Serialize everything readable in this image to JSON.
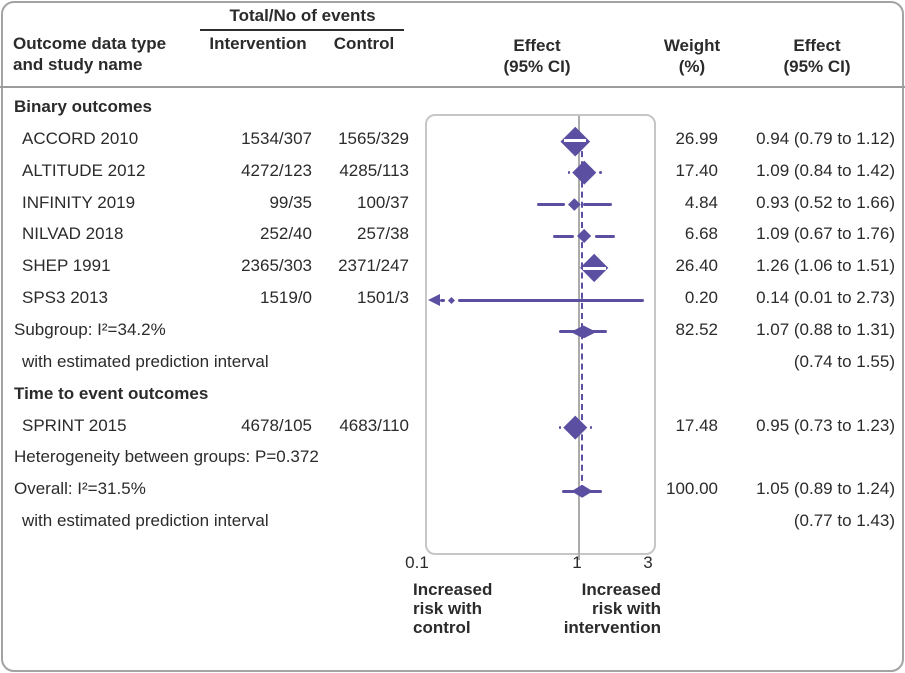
{
  "colors": {
    "accent": "#5b4fa1",
    "null_line": "#ababab",
    "text": "#2b2b2b"
  },
  "header": {
    "events_group": "Total/No of events",
    "outcome_l1": "Outcome data type",
    "outcome_l2": "and study name",
    "intervention": "Intervention",
    "control": "Control",
    "effect_plot_l1": "Effect",
    "effect_plot_l2": "(95% CI)",
    "weight_l1": "Weight",
    "weight_l2": "(%)",
    "effect_text_l1": "Effect",
    "effect_text_l2": "(95% CI)"
  },
  "chart_data": {
    "type": "forest",
    "x_scale": "log",
    "x_ticks": [
      "0.1",
      "1",
      "3"
    ],
    "x_range": [
      0.1,
      3
    ],
    "null_value": 1,
    "overall_estimate_line": 1.05,
    "direction_labels": {
      "left": [
        "Increased",
        "risk with",
        "control"
      ],
      "right": [
        "Increased",
        "risk with",
        "intervention"
      ]
    },
    "rows": [
      {
        "kind": "section",
        "label": "Binary outcomes"
      },
      {
        "kind": "study",
        "label": "ACCORD 2010",
        "intervention": "1534/307",
        "control": "1565/329",
        "weight": "26.99",
        "effect_text": "0.94 (0.79 to 1.12)",
        "est": 0.94,
        "ci_lo": 0.79,
        "ci_hi": 1.12
      },
      {
        "kind": "study",
        "label": "ALTITUDE 2012",
        "intervention": "4272/123",
        "control": "4285/113",
        "weight": "17.40",
        "effect_text": "1.09 (0.84 to 1.42)",
        "est": 1.09,
        "ci_lo": 0.84,
        "ci_hi": 1.42
      },
      {
        "kind": "study",
        "label": "INFINITY 2019",
        "intervention": "99/35",
        "control": "100/37",
        "weight": "4.84",
        "effect_text": "0.93 (0.52 to 1.66)",
        "est": 0.93,
        "ci_lo": 0.52,
        "ci_hi": 1.66
      },
      {
        "kind": "study",
        "label": "NILVAD 2018",
        "intervention": "252/40",
        "control": "257/38",
        "weight": "6.68",
        "effect_text": "1.09 (0.67 to 1.76)",
        "est": 1.09,
        "ci_lo": 0.67,
        "ci_hi": 1.76
      },
      {
        "kind": "study",
        "label": "SHEP 1991",
        "intervention": "2365/303",
        "control": "2371/247",
        "weight": "26.40",
        "effect_text": "1.26 (1.06 to 1.51)",
        "est": 1.26,
        "ci_lo": 1.06,
        "ci_hi": 1.51
      },
      {
        "kind": "study",
        "label": "SPS3 2013",
        "intervention": "1519/0",
        "control": "1501/3",
        "weight": "0.20",
        "effect_text": "0.14 (0.01 to 2.73)",
        "est": 0.14,
        "ci_lo": 0.01,
        "ci_hi": 2.73
      },
      {
        "kind": "pooled",
        "label": "Subgroup: I²=34.2%",
        "weight": "82.52",
        "effect_text": "1.07 (0.88 to 1.31)",
        "est": 1.07,
        "ci_lo": 0.88,
        "ci_hi": 1.31,
        "pi_lo": 0.74,
        "pi_hi": 1.55
      },
      {
        "kind": "note",
        "label": "with estimated prediction interval",
        "effect_text": "(0.74 to 1.55)"
      },
      {
        "kind": "section",
        "label": "Time to event outcomes"
      },
      {
        "kind": "study",
        "label": "SPRINT 2015",
        "intervention": "4678/105",
        "control": "4683/110",
        "weight": "17.48",
        "effect_text": "0.95 (0.73 to 1.23)",
        "est": 0.95,
        "ci_lo": 0.73,
        "ci_hi": 1.23
      },
      {
        "kind": "stat",
        "label": "Heterogeneity between groups: P=0.372"
      },
      {
        "kind": "pooled",
        "label": "Overall: I²=31.5%",
        "weight": "100.00",
        "effect_text": "1.05 (0.89 to 1.24)",
        "est": 1.05,
        "ci_lo": 0.89,
        "ci_hi": 1.24,
        "pi_lo": 0.77,
        "pi_hi": 1.43
      },
      {
        "kind": "note",
        "label": "with estimated prediction interval",
        "effect_text": "(0.77 to 1.43)"
      }
    ]
  }
}
